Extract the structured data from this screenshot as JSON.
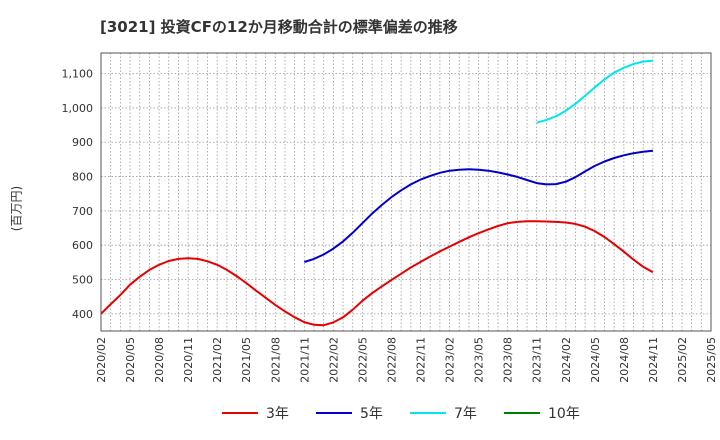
{
  "chart_data": {
    "type": "line",
    "title": "[3021]  投資CFの12か月移動合計の標準偏差の推移",
    "ylabel": "(百万円)",
    "xlabel": "",
    "ylim": [
      350,
      1160
    ],
    "yticks": [
      400,
      500,
      600,
      700,
      800,
      900,
      1000,
      1100
    ],
    "ytick_labels": [
      "400",
      "500",
      "600",
      "700",
      "800",
      "900",
      "1,000",
      "1,100"
    ],
    "x_tick_labels": [
      "2020/02",
      "2020/05",
      "2020/08",
      "2020/11",
      "2021/02",
      "2021/05",
      "2021/08",
      "2021/11",
      "2022/02",
      "2022/05",
      "2022/08",
      "2022/11",
      "2023/02",
      "2023/05",
      "2023/08",
      "2023/11",
      "2024/02",
      "2024/05",
      "2024/08",
      "2024/11",
      "2025/02",
      "2025/05"
    ],
    "grid": true,
    "legend_position": "bottom",
    "series": [
      {
        "name": "3年",
        "color": "#e60000",
        "points": [
          [
            "2020/02",
            400
          ],
          [
            "2020/03",
            428
          ],
          [
            "2020/04",
            455
          ],
          [
            "2020/05",
            485
          ],
          [
            "2020/06",
            508
          ],
          [
            "2020/07",
            528
          ],
          [
            "2020/08",
            543
          ],
          [
            "2020/09",
            554
          ],
          [
            "2020/10",
            560
          ],
          [
            "2020/11",
            562
          ],
          [
            "2020/12",
            560
          ],
          [
            "2021/01",
            553
          ],
          [
            "2021/02",
            543
          ],
          [
            "2021/03",
            528
          ],
          [
            "2021/04",
            510
          ],
          [
            "2021/05",
            490
          ],
          [
            "2021/06",
            468
          ],
          [
            "2021/07",
            447
          ],
          [
            "2021/08",
            426
          ],
          [
            "2021/09",
            407
          ],
          [
            "2021/10",
            390
          ],
          [
            "2021/11",
            376
          ],
          [
            "2021/12",
            368
          ],
          [
            "2022/01",
            367
          ],
          [
            "2022/02",
            375
          ],
          [
            "2022/03",
            390
          ],
          [
            "2022/04",
            412
          ],
          [
            "2022/05",
            438
          ],
          [
            "2022/06",
            460
          ],
          [
            "2022/07",
            480
          ],
          [
            "2022/08",
            499
          ],
          [
            "2022/09",
            517
          ],
          [
            "2022/10",
            535
          ],
          [
            "2022/11",
            551
          ],
          [
            "2022/12",
            567
          ],
          [
            "2023/01",
            582
          ],
          [
            "2023/02",
            596
          ],
          [
            "2023/03",
            610
          ],
          [
            "2023/04",
            623
          ],
          [
            "2023/05",
            635
          ],
          [
            "2023/06",
            646
          ],
          [
            "2023/07",
            656
          ],
          [
            "2023/08",
            664
          ],
          [
            "2023/09",
            668
          ],
          [
            "2023/10",
            670
          ],
          [
            "2023/11",
            670
          ],
          [
            "2023/12",
            669
          ],
          [
            "2024/01",
            668
          ],
          [
            "2024/02",
            666
          ],
          [
            "2024/03",
            662
          ],
          [
            "2024/04",
            654
          ],
          [
            "2024/05",
            641
          ],
          [
            "2024/06",
            624
          ],
          [
            "2024/07",
            603
          ],
          [
            "2024/08",
            581
          ],
          [
            "2024/09",
            558
          ],
          [
            "2024/10",
            537
          ],
          [
            "2024/11",
            521
          ]
        ]
      },
      {
        "name": "5年",
        "color": "#0000c8",
        "points": [
          [
            "2021/11",
            551
          ],
          [
            "2021/12",
            560
          ],
          [
            "2022/01",
            573
          ],
          [
            "2022/02",
            590
          ],
          [
            "2022/03",
            611
          ],
          [
            "2022/04",
            636
          ],
          [
            "2022/05",
            664
          ],
          [
            "2022/06",
            692
          ],
          [
            "2022/07",
            717
          ],
          [
            "2022/08",
            740
          ],
          [
            "2022/09",
            760
          ],
          [
            "2022/10",
            777
          ],
          [
            "2022/11",
            791
          ],
          [
            "2022/12",
            802
          ],
          [
            "2023/01",
            811
          ],
          [
            "2023/02",
            817
          ],
          [
            "2023/03",
            820
          ],
          [
            "2023/04",
            821
          ],
          [
            "2023/05",
            820
          ],
          [
            "2023/06",
            817
          ],
          [
            "2023/07",
            812
          ],
          [
            "2023/08",
            806
          ],
          [
            "2023/09",
            799
          ],
          [
            "2023/10",
            790
          ],
          [
            "2023/11",
            781
          ],
          [
            "2023/12",
            777
          ],
          [
            "2024/01",
            778
          ],
          [
            "2024/02",
            785
          ],
          [
            "2024/03",
            798
          ],
          [
            "2024/04",
            815
          ],
          [
            "2024/05",
            831
          ],
          [
            "2024/06",
            844
          ],
          [
            "2024/07",
            854
          ],
          [
            "2024/08",
            862
          ],
          [
            "2024/09",
            868
          ],
          [
            "2024/10",
            872
          ],
          [
            "2024/11",
            875
          ]
        ]
      },
      {
        "name": "7年",
        "color": "#00e5ee",
        "points": [
          [
            "2023/11",
            957
          ],
          [
            "2023/12",
            965
          ],
          [
            "2024/01",
            976
          ],
          [
            "2024/02",
            992
          ],
          [
            "2024/03",
            1012
          ],
          [
            "2024/04",
            1035
          ],
          [
            "2024/05",
            1060
          ],
          [
            "2024/06",
            1083
          ],
          [
            "2024/07",
            1103
          ],
          [
            "2024/08",
            1117
          ],
          [
            "2024/09",
            1128
          ],
          [
            "2024/10",
            1135
          ],
          [
            "2024/11",
            1138
          ]
        ]
      },
      {
        "name": "10年",
        "color": "#008000",
        "points": []
      }
    ]
  }
}
